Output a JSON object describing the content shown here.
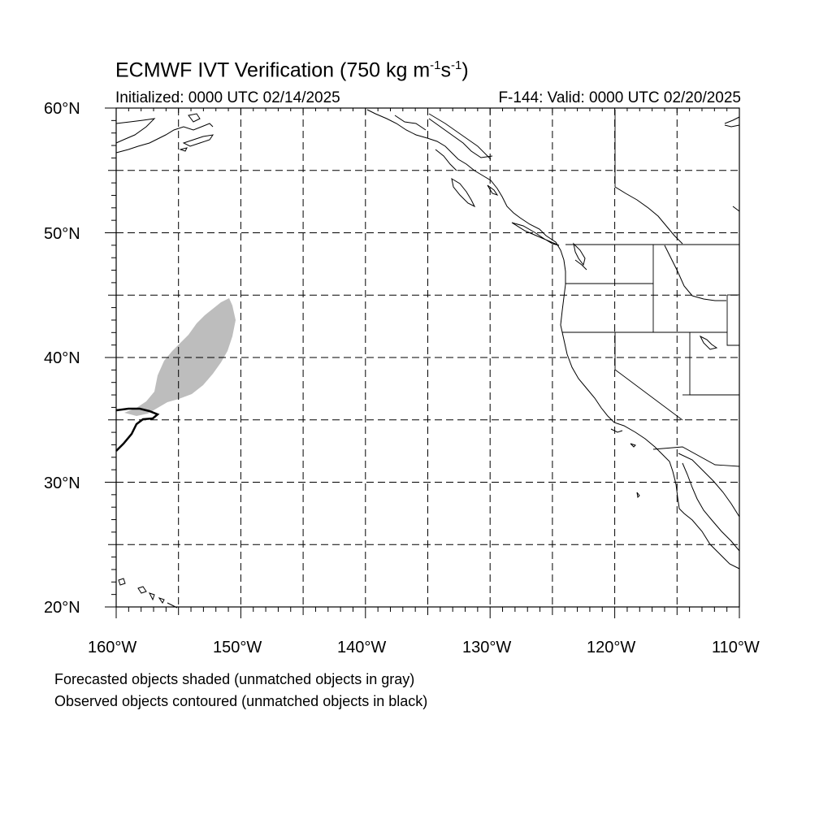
{
  "title": {
    "main": "ECMWF IVT Verification (750 kg m",
    "exp1": "-1",
    "mid": "s",
    "exp2": "-1",
    "end": ")"
  },
  "subtitle_left": "Initialized: 0000 UTC 02/14/2025",
  "subtitle_right": "F-144: Valid: 0000 UTC 02/20/2025",
  "map": {
    "lon_range": [
      -160,
      -110
    ],
    "lat_range": [
      20,
      60
    ],
    "grid": "dashed",
    "lat_labels": [
      "60°N",
      "50°N",
      "40°N",
      "30°N",
      "20°N"
    ],
    "lon_labels": [
      "160°W",
      "150°W",
      "140°W",
      "130°W",
      "120°W",
      "110°W"
    ],
    "colors": {
      "forecast_unmatched": "#bdbdbd",
      "observed_unmatched": "#000000",
      "coastline": "#000000"
    }
  },
  "notes": [
    "Forecasted objects shaded (unmatched objects in gray)",
    "Observed objects contoured (unmatched objects in black)"
  ]
}
